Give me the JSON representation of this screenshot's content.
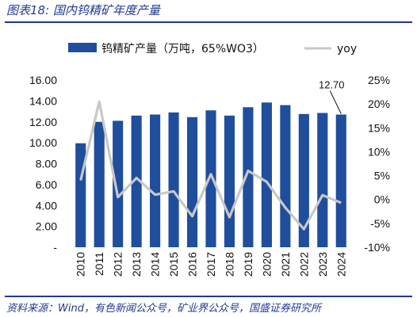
{
  "figure_title": "图表18:  国内钨精矿年度产量",
  "source": "资料来源：Wind，有色新闻公众号，矿业界公众号，国盛证券研究所",
  "colors": {
    "bar": "#1f4e9c",
    "line": "#c8c8c8",
    "title": "#1f3a93"
  },
  "chart_data": {
    "type": "bar",
    "categories": [
      "2010",
      "2011",
      "2012",
      "2013",
      "2014",
      "2015",
      "2016",
      "2017",
      "2018",
      "2019",
      "2020",
      "2021",
      "2022",
      "2023",
      "2024"
    ],
    "series": [
      {
        "name": "钨精矿产量（万吨，65%WO3）",
        "type": "bar",
        "axis": "left",
        "values": [
          9.95,
          12.0,
          12.1,
          12.6,
          12.7,
          12.9,
          12.45,
          13.1,
          12.6,
          13.4,
          13.85,
          13.6,
          12.75,
          12.85,
          12.7
        ]
      },
      {
        "name": "yoy",
        "type": "line",
        "axis": "right",
        "values": [
          0.04,
          0.205,
          0.005,
          0.045,
          0.01,
          0.017,
          -0.035,
          0.053,
          -0.037,
          0.06,
          0.037,
          -0.017,
          -0.062,
          0.009,
          -0.007
        ]
      }
    ],
    "y_left": {
      "lim": [
        0,
        16
      ],
      "ticks": [
        0,
        2,
        4,
        6,
        8,
        10,
        12,
        14,
        16
      ],
      "tick_labels": [
        "-",
        "2.00",
        "4.00",
        "6.00",
        "8.00",
        "10.00",
        "12.00",
        "14.00",
        "16.00"
      ]
    },
    "y_right": {
      "lim": [
        -0.1,
        0.25
      ],
      "ticks": [
        -0.1,
        -0.05,
        0.0,
        0.05,
        0.1,
        0.15,
        0.2,
        0.25
      ],
      "tick_labels": [
        "-10%",
        "-5%",
        "0%",
        "5%",
        "10%",
        "15%",
        "20%",
        "25%"
      ]
    },
    "annotation": {
      "text": "12.70",
      "category": "2024"
    },
    "legend": {
      "position": "top",
      "entries": [
        "钨精矿产量（万吨，65%WO3）",
        "yoy"
      ]
    },
    "grid": false
  }
}
